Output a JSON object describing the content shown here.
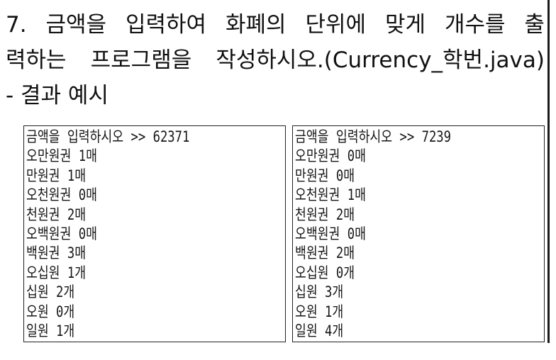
{
  "question": {
    "lines": [
      [
        "7.",
        "금액을",
        "입력하여",
        "화폐의",
        "단위에",
        "맞게",
        "개수를",
        "출"
      ],
      [
        "력하는",
        "프로그램을",
        "작성하시오.(Currency_학번.java)"
      ]
    ],
    "example_label": "- 결과 예시"
  },
  "examples": [
    {
      "lines": [
        "금액을 입력하시오 >> 62371",
        "오만원권 1매",
        "만원권 1매",
        "오천원권 0매",
        "천원권 2매",
        "오백원권 0매",
        "백원권 3매",
        "오십원 1개",
        "십원 2개",
        "오원 0개",
        "일원 1개"
      ]
    },
    {
      "lines": [
        "금액을 입력하시오 >> 7239",
        "오만원권 0매",
        "만원권 0매",
        "오천원권 1매",
        "천원권 2매",
        "오백원권 0매",
        "백원권 2매",
        "오십원 0개",
        "십원 3개",
        "오원 1개",
        "일원 4개"
      ]
    }
  ]
}
